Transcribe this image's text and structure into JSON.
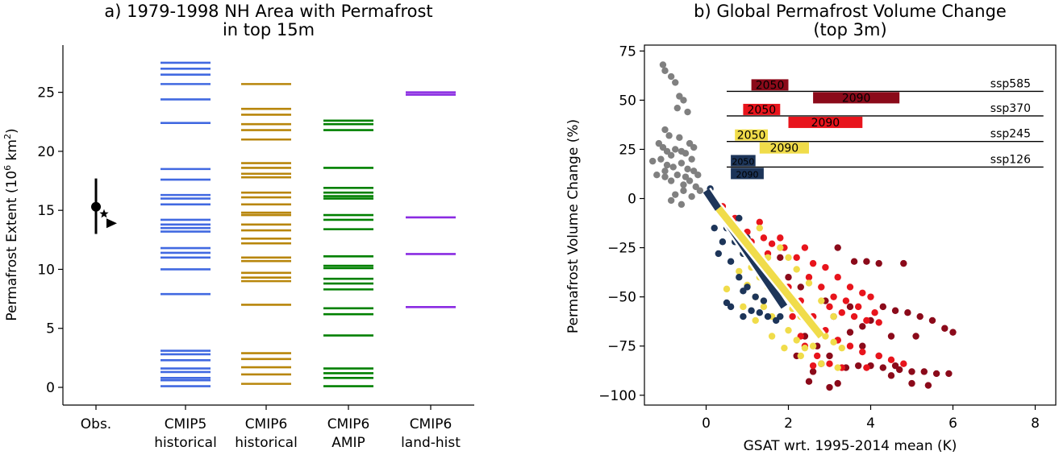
{
  "chart_data": [
    {
      "type": "scatter",
      "title_line1": "a) 1979-1998 NH Area with Permafrost",
      "title_line2": "in top 15m",
      "ylabel": "Permafrost Extent (10",
      "ylabel_sup": "6",
      "ylabel_unit": " km",
      "ylabel_sup2": "2",
      "ylabel_close": ")",
      "ylim": [
        -1.5,
        29
      ],
      "yticks": [
        "0",
        "5",
        "10",
        "15",
        "20",
        "25"
      ],
      "categories": [
        {
          "line1": "Obs.",
          "line2": ""
        },
        {
          "line1": "CMIP5",
          "line2": "historical"
        },
        {
          "line1": "CMIP6",
          "line2": "historical"
        },
        {
          "line1": "CMIP6",
          "line2": "AMIP"
        },
        {
          "line1": "CMIP6",
          "line2": "land-hist"
        }
      ],
      "obs": {
        "circle": 15.3,
        "errbar": [
          13.0,
          17.7
        ],
        "star": 14.7,
        "triangle": 13.9
      },
      "series": [
        {
          "color": "#4169e1",
          "values": [
            27.5,
            27.0,
            26.5,
            25.7,
            24.4,
            22.4,
            18.5,
            17.6,
            16.3,
            16.0,
            15.5,
            14.2,
            13.8,
            13.5,
            13.2,
            11.8,
            11.4,
            11.0,
            10.0,
            7.9,
            3.1,
            2.8,
            2.3,
            1.6,
            1.3,
            0.8,
            0.6,
            0.1
          ]
        },
        {
          "color": "#b8860b",
          "values": [
            25.7,
            23.6,
            23.1,
            22.3,
            21.8,
            21.0,
            19.0,
            18.6,
            18.1,
            17.8,
            16.5,
            16.1,
            15.5,
            14.8,
            14.6,
            13.8,
            13.3,
            12.6,
            12.2,
            11.0,
            10.7,
            9.7,
            9.3,
            9.0,
            7.0,
            2.9,
            2.4,
            1.7,
            1.1,
            0.3
          ]
        },
        {
          "color": "#008000",
          "values": [
            22.6,
            22.3,
            21.8,
            18.6,
            16.9,
            16.5,
            16.2,
            16.0,
            14.6,
            14.2,
            13.4,
            11.1,
            10.3,
            10.1,
            9.2,
            8.8,
            8.3,
            6.7,
            6.2,
            4.4,
            1.6,
            1.2,
            0.8,
            0.1
          ]
        },
        {
          "color": "#8a2be2",
          "values": [
            25.0,
            24.8,
            14.4,
            11.3,
            6.8
          ]
        }
      ]
    },
    {
      "type": "scatter",
      "title_line1": "b) Global Permafrost Volume Change",
      "title_line2": "(top 3m)",
      "xlabel": "GSAT wrt. 1995-2014 mean (K)",
      "ylabel": "Permafrost Volume Change (%)",
      "xlim": [
        -1.5,
        8.5
      ],
      "ylim": [
        -105,
        78
      ],
      "xticks": [
        "0",
        "2",
        "4",
        "6",
        "8"
      ],
      "yticks": [
        "75",
        "50",
        "25",
        "0",
        "−25",
        "−50",
        "−75",
        "−100"
      ],
      "scenarios": [
        {
          "name": "ssp585",
          "color": "#8b0a1a",
          "baseline_y": 54.5,
          "bars": [
            {
              "label": "2050",
              "x0": 1.1,
              "x1": 2.0
            },
            {
              "label": "2090",
              "x0": 2.6,
              "x1": 4.7
            }
          ]
        },
        {
          "name": "ssp370",
          "color": "#e8141c",
          "baseline_y": 42,
          "bars": [
            {
              "label": "2050",
              "x0": 0.9,
              "x1": 1.8
            },
            {
              "label": "2090",
              "x0": 2.0,
              "x1": 3.8
            }
          ]
        },
        {
          "name": "ssp245",
          "color": "#f0dc4a",
          "baseline_y": 29,
          "bars": [
            {
              "label": "2050",
              "x0": 0.7,
              "x1": 1.5
            },
            {
              "label": "2090",
              "x0": 1.3,
              "x1": 2.5
            }
          ]
        },
        {
          "name": "ssp126",
          "color": "#1d3559",
          "baseline_y": 16,
          "bars": [
            {
              "label": "2050",
              "x0": 0.6,
              "x1": 1.2
            },
            {
              "label": "2090",
              "x0": 0.6,
              "x1": 1.4
            }
          ]
        }
      ],
      "regression_lines": [
        {
          "color": "#1d3559",
          "from": [
            0.0,
            4.0
          ],
          "to": [
            1.9,
            -55.0
          ]
        },
        {
          "color": "#f0dc4a",
          "from": [
            0.3,
            -5.0
          ],
          "to": [
            2.8,
            -70.0
          ]
        }
      ],
      "historical": {
        "color": "#808080",
        "points": [
          [
            -1.05,
            68
          ],
          [
            -1.0,
            65
          ],
          [
            -0.85,
            62
          ],
          [
            -0.75,
            59
          ],
          [
            -0.65,
            52
          ],
          [
            -0.55,
            50
          ],
          [
            -0.7,
            46
          ],
          [
            -0.45,
            44
          ],
          [
            -1.0,
            35
          ],
          [
            -0.9,
            32
          ],
          [
            -0.65,
            31
          ],
          [
            -0.4,
            28
          ],
          [
            -0.3,
            26
          ],
          [
            -1.15,
            28
          ],
          [
            -1.05,
            26
          ],
          [
            -0.95,
            24
          ],
          [
            -0.85,
            22
          ],
          [
            -0.75,
            25
          ],
          [
            -0.6,
            24
          ],
          [
            -0.5,
            23
          ],
          [
            -0.35,
            20
          ],
          [
            -1.3,
            19
          ],
          [
            -1.1,
            20
          ],
          [
            -0.95,
            17
          ],
          [
            -0.8,
            16
          ],
          [
            -0.6,
            18
          ],
          [
            -0.45,
            15
          ],
          [
            -0.3,
            14
          ],
          [
            -0.2,
            12
          ],
          [
            -1.2,
            12
          ],
          [
            -1.0,
            11
          ],
          [
            -0.85,
            9
          ],
          [
            -0.7,
            12
          ],
          [
            -0.55,
            7
          ],
          [
            -0.4,
            9
          ],
          [
            -0.25,
            6
          ],
          [
            -0.15,
            4
          ],
          [
            -0.75,
            2
          ],
          [
            -0.55,
            4
          ],
          [
            -0.35,
            1
          ],
          [
            -0.85,
            -1
          ],
          [
            -0.6,
            -3
          ],
          [
            -1.0,
            14
          ],
          [
            -0.5,
            11
          ]
        ]
      },
      "projections": [
        {
          "name": "ssp585",
          "color": "#8b0a1a",
          "points": [
            [
              3.6,
              -32
            ],
            [
              3.9,
              -32
            ],
            [
              4.2,
              -33
            ],
            [
              4.8,
              -33
            ],
            [
              3.2,
              -25
            ],
            [
              4.3,
              -55
            ],
            [
              4.6,
              -57
            ],
            [
              4.9,
              -58
            ],
            [
              5.2,
              -60
            ],
            [
              5.5,
              -62
            ],
            [
              5.8,
              -66
            ],
            [
              6.0,
              -68
            ],
            [
              5.0,
              -88
            ],
            [
              5.3,
              -88
            ],
            [
              5.6,
              -89
            ],
            [
              5.9,
              -89
            ],
            [
              4.6,
              -85
            ],
            [
              4.2,
              -80
            ],
            [
              3.8,
              -75
            ],
            [
              5.0,
              -94
            ],
            [
              5.4,
              -95
            ],
            [
              3.2,
              -94
            ],
            [
              2.6,
              -88
            ],
            [
              2.8,
              -84
            ],
            [
              3.0,
              -80
            ],
            [
              3.2,
              -72
            ],
            [
              3.5,
              -68
            ],
            [
              3.8,
              -65
            ],
            [
              4.0,
              -62
            ],
            [
              3.0,
              -96
            ],
            [
              4.5,
              -90
            ],
            [
              2.4,
              -70
            ],
            [
              2.7,
              -75
            ],
            [
              3.4,
              -86
            ],
            [
              3.7,
              -85
            ],
            [
              4.0,
              -85
            ],
            [
              4.3,
              -86
            ],
            [
              4.7,
              -87
            ],
            [
              3.1,
              -60
            ],
            [
              3.5,
              -55
            ],
            [
              2.9,
              -52
            ],
            [
              2.0,
              -40
            ],
            [
              2.3,
              -45
            ],
            [
              4.5,
              -70
            ],
            [
              2.2,
              -80
            ],
            [
              2.5,
              -93
            ],
            [
              5.1,
              -70
            ],
            [
              1.8,
              -30
            ],
            [
              2.6,
              -60
            ]
          ]
        },
        {
          "name": "ssp370",
          "color": "#e8141c",
          "points": [
            [
              0.4,
              -4
            ],
            [
              0.7,
              -10
            ],
            [
              1.0,
              -17
            ],
            [
              1.4,
              -20
            ],
            [
              1.6,
              -23
            ],
            [
              1.9,
              -25
            ],
            [
              2.2,
              -30
            ],
            [
              2.6,
              -33
            ],
            [
              2.9,
              -35
            ],
            [
              3.2,
              -40
            ],
            [
              3.5,
              -45
            ],
            [
              3.8,
              -48
            ],
            [
              4.0,
              -50
            ],
            [
              3.0,
              -55
            ],
            [
              3.3,
              -58
            ],
            [
              3.6,
              -60
            ],
            [
              3.9,
              -62
            ],
            [
              4.2,
              -63
            ],
            [
              2.6,
              -60
            ],
            [
              2.9,
              -67
            ],
            [
              3.2,
              -72
            ],
            [
              3.5,
              -75
            ],
            [
              3.8,
              -78
            ],
            [
              4.2,
              -80
            ],
            [
              4.5,
              -82
            ],
            [
              4.8,
              -84
            ],
            [
              2.3,
              -52
            ],
            [
              2.0,
              -45
            ],
            [
              1.7,
              -40
            ],
            [
              1.5,
              -36
            ],
            [
              1.2,
              -30
            ],
            [
              2.4,
              -75
            ],
            [
              2.7,
              -80
            ],
            [
              3.0,
              -84
            ],
            [
              3.3,
              -86
            ],
            [
              1.3,
              -12
            ],
            [
              1.1,
              -22
            ],
            [
              2.5,
              -40
            ],
            [
              2.8,
              -45
            ],
            [
              3.1,
              -50
            ],
            [
              3.4,
              -52
            ],
            [
              3.7,
              -55
            ],
            [
              4.1,
              -58
            ],
            [
              2.1,
              -60
            ],
            [
              2.3,
              -70
            ],
            [
              2.6,
              -85
            ],
            [
              3.9,
              -86
            ],
            [
              1.8,
              -20
            ],
            [
              2.4,
              -25
            ],
            [
              1.5,
              -28
            ]
          ]
        },
        {
          "name": "ssp245",
          "color": "#f0dc4a",
          "points": [
            [
              0.5,
              -12
            ],
            [
              0.7,
              -20
            ],
            [
              0.9,
              -28
            ],
            [
              1.1,
              -35
            ],
            [
              1.3,
              -40
            ],
            [
              1.5,
              -45
            ],
            [
              1.7,
              -48
            ],
            [
              1.9,
              -52
            ],
            [
              2.1,
              -56
            ],
            [
              2.3,
              -60
            ],
            [
              2.5,
              -63
            ],
            [
              2.7,
              -66
            ],
            [
              2.9,
              -70
            ],
            [
              3.1,
              -73
            ],
            [
              3.3,
              -76
            ],
            [
              2.0,
              -67
            ],
            [
              2.2,
              -72
            ],
            [
              2.4,
              -76
            ],
            [
              1.6,
              -60
            ],
            [
              1.4,
              -55
            ],
            [
              1.2,
              -50
            ],
            [
              1.0,
              -44
            ],
            [
              0.8,
              -37
            ],
            [
              1.8,
              -25
            ],
            [
              2.0,
              -30
            ],
            [
              2.2,
              -36
            ],
            [
              2.5,
              -43
            ],
            [
              2.8,
              -52
            ],
            [
              3.1,
              -60
            ],
            [
              0.5,
              -46
            ],
            [
              0.9,
              -55
            ],
            [
              1.2,
              -62
            ],
            [
              1.6,
              -70
            ],
            [
              1.9,
              -76
            ],
            [
              2.3,
              -80
            ],
            [
              2.8,
              -84
            ],
            [
              3.2,
              -86
            ],
            [
              1.5,
              -30
            ],
            [
              1.3,
              -15
            ],
            [
              2.6,
              -75
            ]
          ]
        },
        {
          "name": "ssp126",
          "color": "#1d3559",
          "points": [
            [
              0.1,
              5
            ],
            [
              0.3,
              -5
            ],
            [
              0.5,
              -15
            ],
            [
              0.7,
              -22
            ],
            [
              0.9,
              -28
            ],
            [
              0.6,
              -32
            ],
            [
              0.8,
              -40
            ],
            [
              1.0,
              -45
            ],
            [
              1.2,
              -50
            ],
            [
              0.4,
              -22
            ],
            [
              0.3,
              -28
            ],
            [
              0.6,
              -55
            ],
            [
              0.9,
              -60
            ],
            [
              1.1,
              -57
            ],
            [
              1.3,
              -58
            ],
            [
              1.5,
              -60
            ],
            [
              1.7,
              -62
            ],
            [
              1.2,
              -35
            ],
            [
              1.4,
              -40
            ],
            [
              1.6,
              -45
            ],
            [
              1.8,
              -52
            ],
            [
              0.2,
              -15
            ],
            [
              0.5,
              -53
            ],
            [
              0.9,
              -47
            ],
            [
              1.4,
              -52
            ],
            [
              1.8,
              -60
            ],
            [
              0.8,
              -10
            ],
            [
              1.0,
              -20
            ]
          ]
        }
      ]
    }
  ]
}
